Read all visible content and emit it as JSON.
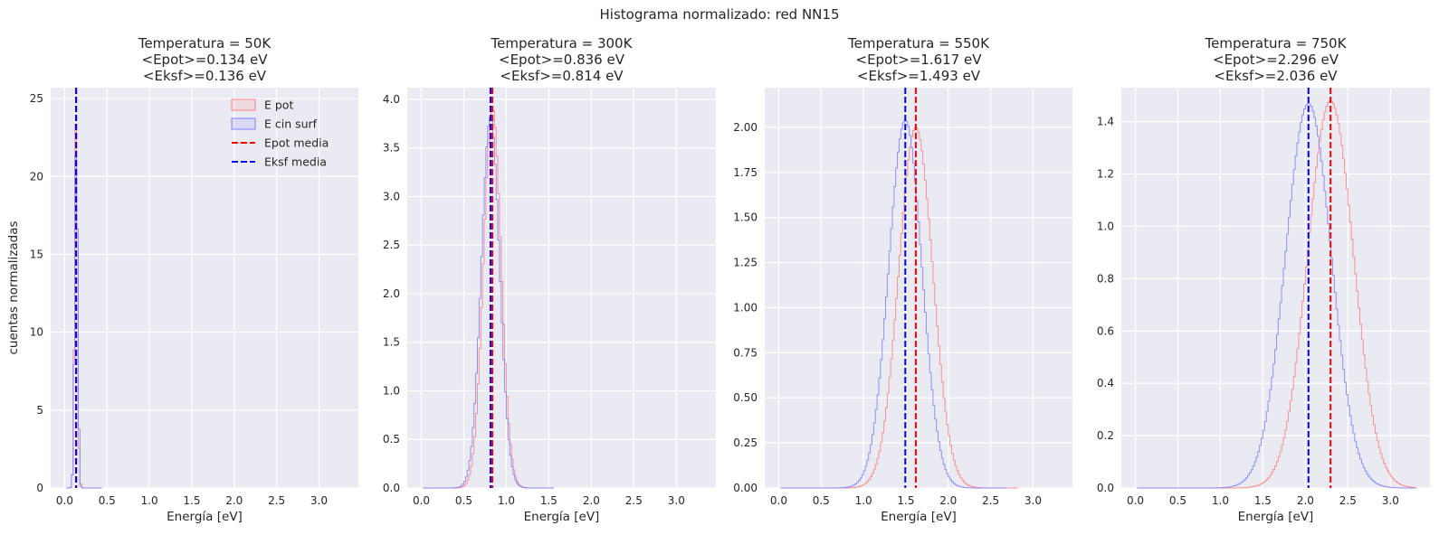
{
  "figure": {
    "suptitle": "Histograma normalizado: red NN15"
  },
  "chart_data": [
    {
      "type": "histogram",
      "title": [
        "Temperatura = 50K",
        "<Epot>=0.134 eV",
        "<Eksf>=0.136 eV"
      ],
      "xlabel": "Energía [eV]",
      "ylabel": "cuentas normalizadas",
      "xlim": [
        -0.165,
        3.465
      ],
      "ylim": [
        0,
        25.7
      ],
      "xticks": [
        "0.0",
        "0.5",
        "1.0",
        "1.5",
        "2.0",
        "2.5",
        "3.0"
      ],
      "xtick_values": [
        0,
        0.5,
        1,
        1.5,
        2,
        2.5,
        3
      ],
      "yticks": [
        "0",
        "5",
        "10",
        "15",
        "20",
        "25"
      ],
      "ytick_values": [
        0,
        5,
        10,
        15,
        20,
        25
      ],
      "grid": true,
      "legend": {
        "placement": "top-right",
        "entries": [
          "E pot",
          "E cin surf",
          "Epot media",
          "Eksf media"
        ]
      },
      "series": [
        {
          "name": "E pot",
          "mean": 0.134,
          "sd": 0.017,
          "peak": 24.0,
          "color": "#ff7f7f"
        },
        {
          "name": "E cin surf",
          "mean": 0.136,
          "sd": 0.018,
          "peak": 22.5,
          "color": "#7f7fff"
        }
      ],
      "vlines": [
        {
          "name": "Epot media",
          "x": 0.134,
          "color": "#ff0000"
        },
        {
          "name": "Eksf media",
          "x": 0.136,
          "color": "#0000ff"
        }
      ]
    },
    {
      "type": "histogram",
      "title": [
        "Temperatura = 300K",
        "<Epot>=0.836 eV",
        "<Eksf>=0.814 eV"
      ],
      "xlabel": "Energía [eV]",
      "ylabel": "",
      "xlim": [
        -0.165,
        3.465
      ],
      "ylim": [
        0,
        4.12
      ],
      "xticks": [
        "0.0",
        "0.5",
        "1.0",
        "1.5",
        "2.0",
        "2.5",
        "3.0"
      ],
      "xtick_values": [
        0,
        0.5,
        1,
        1.5,
        2,
        2.5,
        3
      ],
      "yticks": [
        "0.0",
        "0.5",
        "1.0",
        "1.5",
        "2.0",
        "2.5",
        "3.0",
        "3.5",
        "4.0"
      ],
      "ytick_values": [
        0,
        0.5,
        1,
        1.5,
        2,
        2.5,
        3,
        3.5,
        4
      ],
      "grid": true,
      "series": [
        {
          "name": "E pot",
          "mean": 0.836,
          "sd": 0.103,
          "peak": 3.92,
          "color": "#ff7f7f"
        },
        {
          "name": "E cin surf",
          "mean": 0.814,
          "sd": 0.107,
          "peak": 3.82,
          "color": "#7f7fff"
        }
      ],
      "vlines": [
        {
          "name": "Epot media",
          "x": 0.836,
          "color": "#ff0000"
        },
        {
          "name": "Eksf media",
          "x": 0.814,
          "color": "#0000ff"
        }
      ]
    },
    {
      "type": "histogram",
      "title": [
        "Temperatura = 550K",
        "<Epot>=1.617 eV",
        "<Eksf>=1.493 eV"
      ],
      "xlabel": "Energía [eV]",
      "ylabel": "",
      "xlim": [
        -0.165,
        3.465
      ],
      "ylim": [
        0,
        2.22
      ],
      "xticks": [
        "0.0",
        "0.5",
        "1.0",
        "1.5",
        "2.0",
        "2.5",
        "3.0"
      ],
      "xtick_values": [
        0,
        0.5,
        1,
        1.5,
        2,
        2.5,
        3
      ],
      "yticks": [
        "0.00",
        "0.25",
        "0.50",
        "0.75",
        "1.00",
        "1.25",
        "1.50",
        "1.75",
        "2.00"
      ],
      "ytick_values": [
        0,
        0.25,
        0.5,
        0.75,
        1,
        1.25,
        1.5,
        1.75,
        2
      ],
      "grid": true,
      "series": [
        {
          "name": "E pot",
          "mean": 1.617,
          "sd": 0.2,
          "peak": 2.0,
          "color": "#ff7f7f"
        },
        {
          "name": "E cin surf",
          "mean": 1.493,
          "sd": 0.195,
          "peak": 2.04,
          "color": "#7f7fff"
        }
      ],
      "vlines": [
        {
          "name": "Epot media",
          "x": 1.617,
          "color": "#ff0000"
        },
        {
          "name": "Eksf media",
          "x": 1.493,
          "color": "#0000ff"
        }
      ]
    },
    {
      "type": "histogram",
      "title": [
        "Temperatura = 750K",
        "<Epot>=2.296 eV",
        "<Eksf>=2.036 eV"
      ],
      "xlabel": "Energía [eV]",
      "ylabel": "",
      "xlim": [
        -0.165,
        3.465
      ],
      "ylim": [
        0,
        1.53
      ],
      "xticks": [
        "0.0",
        "0.5",
        "1.0",
        "1.5",
        "2.0",
        "2.5",
        "3.0"
      ],
      "xtick_values": [
        0,
        0.5,
        1,
        1.5,
        2,
        2.5,
        3
      ],
      "yticks": [
        "0.0",
        "0.2",
        "0.4",
        "0.6",
        "0.8",
        "1.0",
        "1.2",
        "1.4"
      ],
      "ytick_values": [
        0,
        0.2,
        0.4,
        0.6,
        0.8,
        1,
        1.2,
        1.4
      ],
      "grid": true,
      "series": [
        {
          "name": "E pot",
          "mean": 2.296,
          "sd": 0.27,
          "peak": 1.48,
          "color": "#ff7f7f"
        },
        {
          "name": "E cin surf",
          "mean": 2.036,
          "sd": 0.27,
          "peak": 1.47,
          "color": "#7f7fff"
        }
      ],
      "vlines": [
        {
          "name": "Epot media",
          "x": 2.296,
          "color": "#ff0000"
        },
        {
          "name": "Eksf media",
          "x": 2.036,
          "color": "#0000ff"
        }
      ]
    }
  ]
}
